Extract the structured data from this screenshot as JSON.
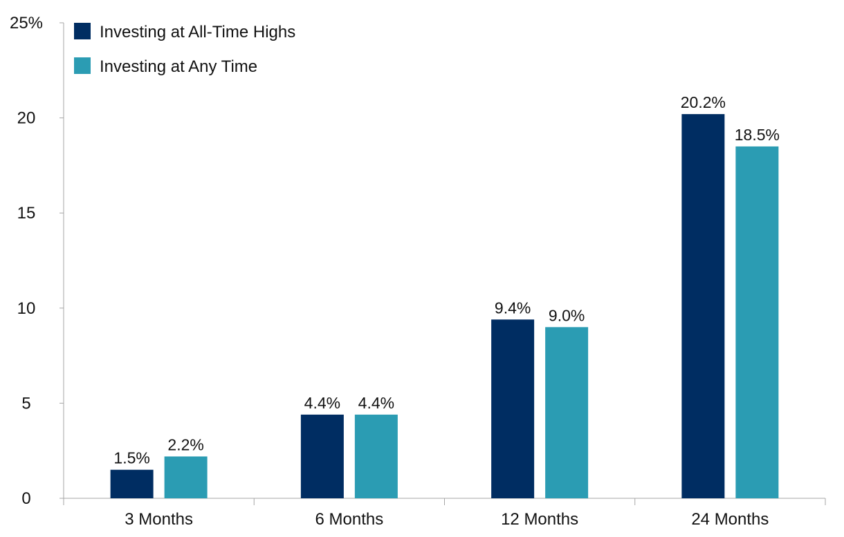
{
  "chart_data": {
    "type": "bar",
    "title": "",
    "xlabel": "",
    "ylabel": "",
    "categories": [
      "3 Months",
      "6 Months",
      "12 Months",
      "24 Months"
    ],
    "series": [
      {
        "name": "Investing at All-Time Highs",
        "color": "#002d62",
        "values": [
          1.5,
          4.4,
          9.4,
          20.2
        ],
        "labels": [
          "1.5%",
          "4.4%",
          "9.4%",
          "20.2%"
        ]
      },
      {
        "name": "Investing at Any Time",
        "color": "#2b9cb3",
        "values": [
          2.2,
          4.4,
          9.0,
          18.5
        ],
        "labels": [
          "2.2%",
          "4.4%",
          "9.0%",
          "18.5%"
        ]
      }
    ],
    "ylim": [
      0,
      25
    ],
    "yticks": [
      0,
      5,
      10,
      15,
      20,
      25
    ],
    "ytick_labels": [
      "0",
      "5",
      "10",
      "15",
      "20",
      "25%"
    ],
    "grid": false,
    "legend_position": "top-left"
  }
}
